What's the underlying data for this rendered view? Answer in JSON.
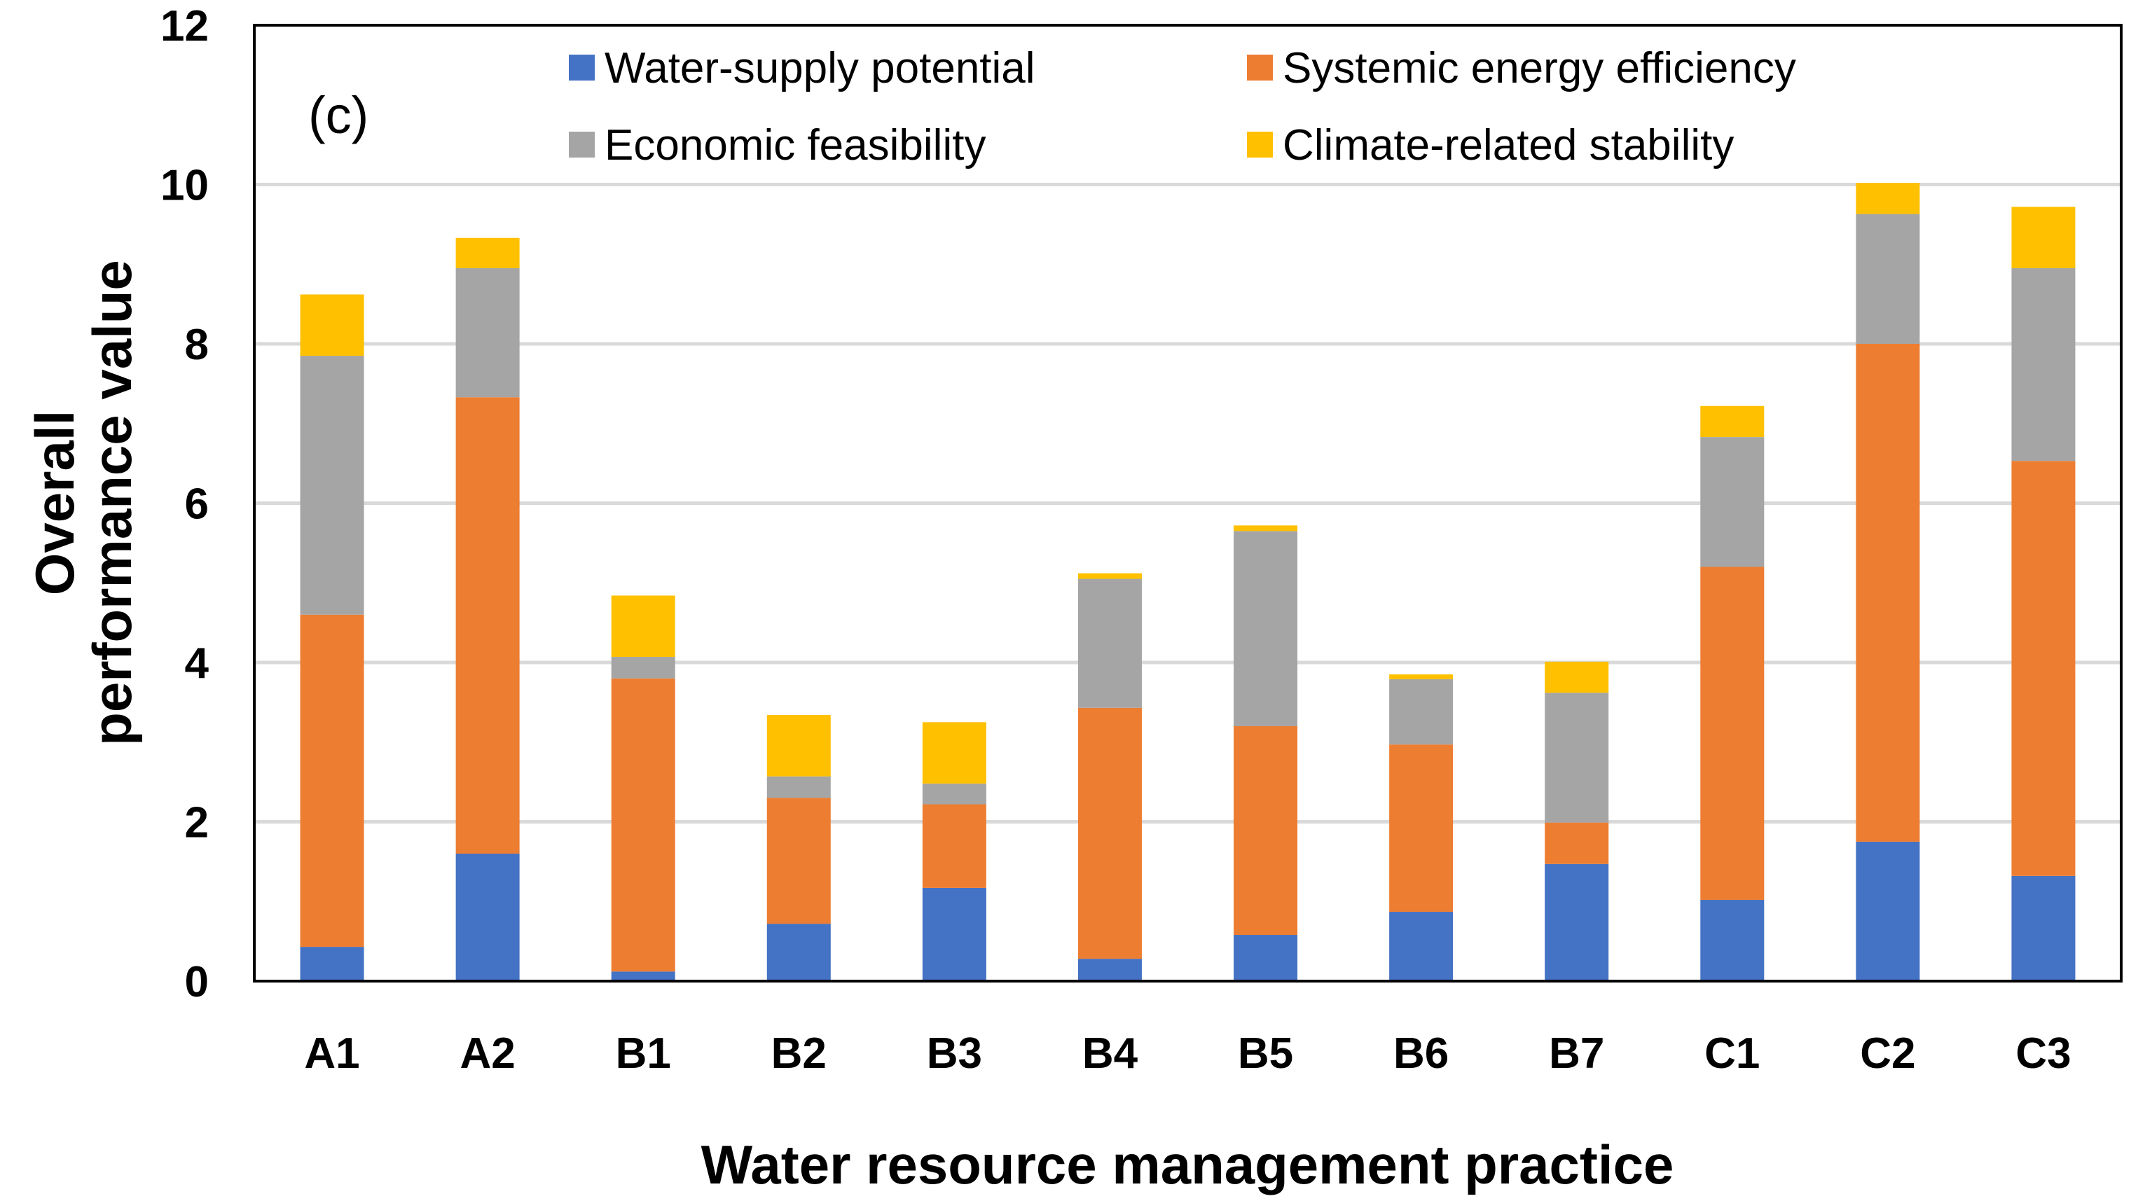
{
  "chart_data": {
    "type": "bar",
    "stacked": true,
    "title": "",
    "panel_label": "(c)",
    "xlabel": "Water resource management practice",
    "ylabel_lines": [
      "Overall",
      "performance value"
    ],
    "ylim": [
      0,
      12
    ],
    "yticks": [
      0,
      2,
      4,
      6,
      8,
      10,
      12
    ],
    "grid": true,
    "legend_position": "top",
    "categories": [
      "A1",
      "A2",
      "B1",
      "B2",
      "B3",
      "B4",
      "B5",
      "B6",
      "B7",
      "C1",
      "C2",
      "C3"
    ],
    "series": [
      {
        "name": "Water-supply potential",
        "color": "#4472C4",
        "values": [
          0.43,
          1.6,
          0.12,
          0.72,
          1.17,
          0.28,
          0.58,
          0.87,
          1.47,
          1.02,
          1.75,
          1.32
        ]
      },
      {
        "name": "Systemic energy efficiency",
        "color": "#ED7D31",
        "values": [
          4.17,
          5.73,
          3.68,
          1.58,
          1.05,
          3.15,
          2.62,
          2.1,
          0.52,
          4.18,
          6.25,
          5.21
        ]
      },
      {
        "name": "Economic feasibility",
        "color": "#A5A5A5",
        "values": [
          3.25,
          1.62,
          0.27,
          0.27,
          0.26,
          1.62,
          2.45,
          0.82,
          1.63,
          1.63,
          1.63,
          2.42
        ]
      },
      {
        "name": "Climate-related stability",
        "color": "#FFC000",
        "values": [
          0.77,
          0.38,
          0.77,
          0.77,
          0.77,
          0.07,
          0.07,
          0.06,
          0.39,
          0.39,
          0.39,
          0.77
        ]
      }
    ]
  }
}
